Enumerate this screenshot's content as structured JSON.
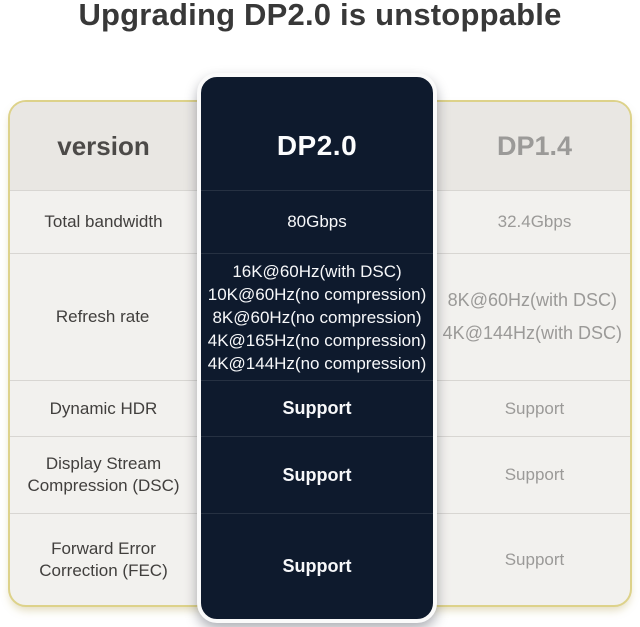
{
  "title": "Upgrading DP2.0 is unstoppable",
  "table": {
    "header": {
      "version": "version",
      "dp20": "DP2.0",
      "dp14": "DP1.4"
    },
    "rows": [
      {
        "feature": "Total bandwidth",
        "dp20": "80Gbps",
        "dp14": "32.4Gbps"
      },
      {
        "feature": "Refresh rate",
        "dp20_lines": [
          "16K@60Hz(with DSC)",
          "10K@60Hz(no compression)",
          "8K@60Hz(no compression)",
          "4K@165Hz(no compression)",
          "4K@144Hz(no compression)"
        ],
        "dp14_lines": [
          "8K@60Hz(with DSC)",
          "4K@144Hz(with DSC)"
        ]
      },
      {
        "feature": "Dynamic HDR",
        "dp20": "Support",
        "dp14": "Support"
      },
      {
        "feature": "Display Stream Compression (DSC)",
        "dp20": "Support",
        "dp14": "Support"
      },
      {
        "feature": "Forward Error Correction (FEC)",
        "dp20": "Support",
        "dp14": "Support"
      }
    ]
  },
  "colors": {
    "highlight_bg": "#0e1a2d",
    "table_border": "#ddd28a",
    "header_bg": "#e9e7e3",
    "row_bg": "#f2f1ee",
    "muted_text": "#9b9a98",
    "dark_text": "#413f3d"
  }
}
